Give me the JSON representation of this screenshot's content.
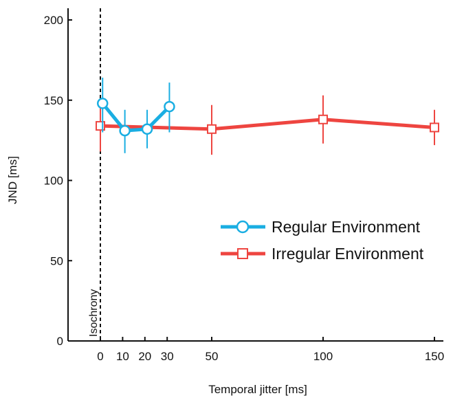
{
  "chart_data": {
    "type": "line",
    "title": "",
    "xlabel": "Temporal jitter [ms]",
    "ylabel": "JND [ms]",
    "xlim": [
      -10,
      155
    ],
    "ylim": [
      0,
      210
    ],
    "xticks": [
      0,
      10,
      20,
      30,
      50,
      100,
      150
    ],
    "yticks": [
      0,
      50,
      100,
      150,
      200
    ],
    "grid": false,
    "legend_position": "center-right",
    "annotation": {
      "text": "Isochrony",
      "x": 0
    },
    "series": [
      {
        "name": "Regular Environment",
        "color": "#1aaee2",
        "marker": "circle",
        "x": [
          1,
          11,
          21,
          31
        ],
        "y": [
          148,
          131,
          132,
          146
        ],
        "err_low": [
          130,
          117,
          120,
          130
        ],
        "err_high": [
          164,
          144,
          144,
          161
        ]
      },
      {
        "name": "Irregular Environment",
        "color": "#ee4540",
        "marker": "square",
        "x": [
          0,
          50,
          100,
          150
        ],
        "y": [
          134,
          132,
          138,
          133
        ],
        "err_low": [
          118,
          116,
          123,
          122
        ],
        "err_high": [
          150,
          147,
          153,
          144
        ]
      }
    ]
  }
}
